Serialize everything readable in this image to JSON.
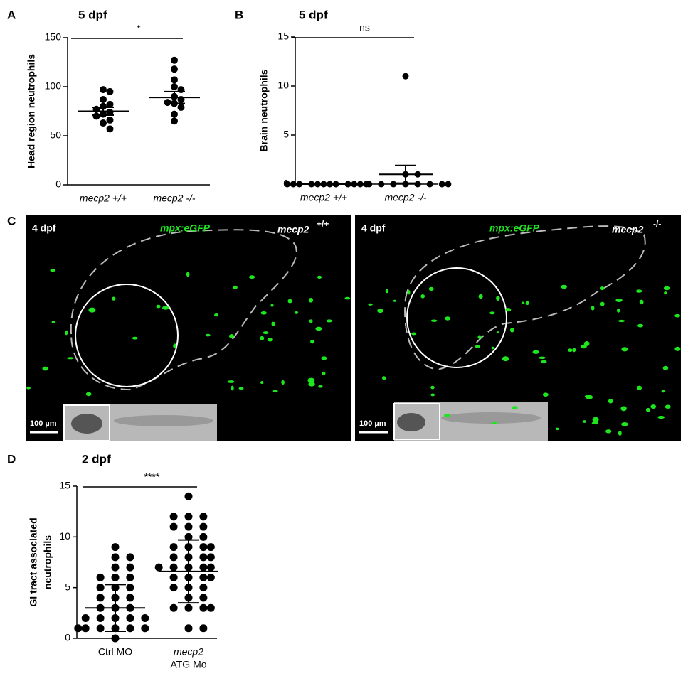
{
  "chart_data": [
    {
      "type": "dot",
      "label": "A",
      "title": "5 dpf",
      "ylabel": [
        "Head region neutrophils"
      ],
      "categories": [
        [
          "mecp2 +/+"
        ],
        [
          "mecp2 -/-"
        ]
      ],
      "color": "#000000",
      "values": [
        [
          97,
          95,
          87,
          82,
          80,
          77,
          74,
          72,
          70,
          66,
          63,
          57
        ],
        [
          127,
          118,
          107,
          100,
          97,
          90,
          87,
          84,
          83,
          79,
          72,
          65
        ]
      ],
      "means": [
        75,
        89
      ],
      "errors": [
        4,
        6
      ],
      "significance": "*",
      "ylim": [
        0,
        150
      ],
      "yticks": [
        0,
        50,
        100,
        150
      ]
    },
    {
      "type": "dot",
      "label": "B",
      "title": "5 dpf",
      "ylabel": [
        "Brain neutrophils"
      ],
      "categories": [
        [
          "mecp2 +/+"
        ],
        [
          "mecp2 -/-"
        ]
      ],
      "color": "#000000",
      "values": [
        [
          0,
          0,
          0,
          0,
          0,
          0,
          0,
          0,
          0,
          0,
          0,
          0
        ],
        [
          11,
          1,
          1,
          0,
          0,
          0,
          0,
          0,
          0,
          0,
          0
        ]
      ],
      "means": [
        0,
        1
      ],
      "errors": [
        0,
        0.9
      ],
      "significance": "ns",
      "ylim": [
        0,
        15
      ],
      "yticks": [
        0,
        5,
        10,
        15
      ]
    },
    {
      "type": "dot",
      "label": "D",
      "title": "2 dpf",
      "ylabel": [
        "GI tract associated",
        "neutrophils"
      ],
      "categories": [
        [
          "Ctrl MO"
        ],
        [
          "mecp2",
          "ATG Mo"
        ]
      ],
      "color": "#000000",
      "values": [
        [
          9,
          8,
          8,
          7,
          7,
          6,
          6,
          6,
          5,
          5,
          5,
          4,
          4,
          4,
          3,
          3,
          3,
          2,
          2,
          2,
          2,
          2,
          1,
          1,
          1,
          1,
          1,
          1,
          0
        ],
        [
          14,
          12,
          12,
          12,
          11,
          11,
          11,
          10,
          10,
          9,
          9,
          9,
          9,
          8,
          8,
          8,
          8,
          7,
          7,
          7,
          7,
          7,
          6,
          6,
          6,
          6,
          5,
          5,
          5,
          4,
          4,
          3,
          3,
          3,
          3,
          1,
          1
        ]
      ],
      "means": [
        3,
        6.6
      ],
      "errors": [
        2.3,
        3.1
      ],
      "significance": "****",
      "ylim": [
        0,
        15
      ],
      "yticks": [
        0,
        5,
        10,
        15
      ]
    }
  ],
  "panel_c": {
    "label": "C",
    "images": [
      {
        "time": "4 dpf",
        "marker": "mpx:eGFP",
        "genotype": "mecp2",
        "genotype_sup": "+/+",
        "scale": "100 µm"
      },
      {
        "time": "4 dpf",
        "marker": "mpx:eGFP",
        "genotype": "mecp2",
        "genotype_sup": "-/-",
        "scale": "100 µm"
      }
    ]
  }
}
